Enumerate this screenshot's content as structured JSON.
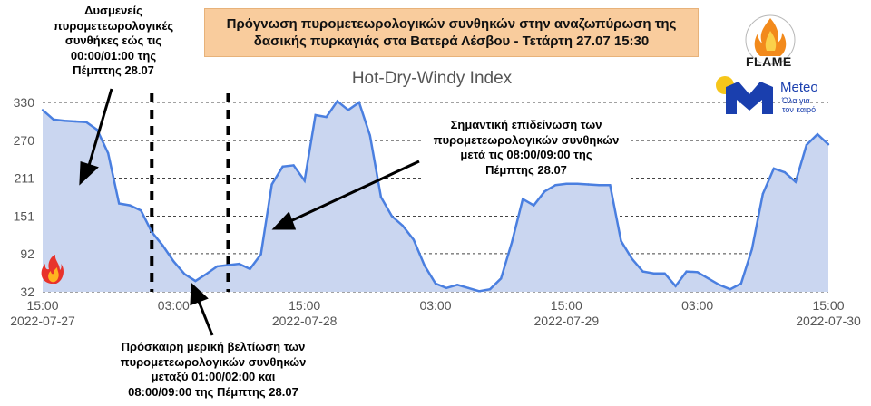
{
  "title_lines": [
    "Πρόγνωση πυρομετεωρολογικών συνθηκών στην αναζωπύρωση της",
    "δασικής πυρκαγιάς στα Βατερά Λέσβου - Τετάρτη 27.07 15:30"
  ],
  "logos": {
    "flame": "FLAME",
    "meteo": "Meteo",
    "meteo_tagline": [
      "Όλα για",
      "τον καιρό"
    ]
  },
  "annotations": {
    "left_top": [
      "Δυσμενείς",
      "πυρομετεωρολογικές",
      "συνθήκες εώς τις",
      "00:00/01:00 της",
      "Πέμπτης 28.07"
    ],
    "right": [
      "Σημαντική επιδείνωση των",
      "πυρομετεωρολογικών συνθηκών",
      "μετά τις 08:00/09:00 της",
      "Πέμπτης 28.07"
    ],
    "bottom": [
      "Πρόσκαιρη μερική βελτίωση των",
      "πυρομετεωρολογικών συνθηκών",
      "μεταξύ 01:00/02:00 και",
      "08:00/09:00 της Πέμπτης 28.07"
    ]
  },
  "colors": {
    "line": "#4a7fe0",
    "fill": "#cad6f0",
    "grid": "#444444",
    "title_box": "#f9cc9d"
  },
  "chart_data": {
    "type": "area",
    "title": "Hot-Dry-Windy Index",
    "xlabel": "",
    "ylabel": "",
    "y_ticks": [
      32,
      92,
      151,
      211,
      270,
      330
    ],
    "ylim": [
      32,
      330
    ],
    "x_ticks": [
      {
        "time": "2022-07-27 15:00",
        "top": "15:00",
        "bottom": "2022-07-27"
      },
      {
        "time": "2022-07-28 03:00",
        "top": "03:00",
        "bottom": ""
      },
      {
        "time": "2022-07-28 15:00",
        "top": "15:00",
        "bottom": "2022-07-28"
      },
      {
        "time": "2022-07-29 03:00",
        "top": "03:00",
        "bottom": ""
      },
      {
        "time": "2022-07-29 15:00",
        "top": "15:00",
        "bottom": "2022-07-29"
      },
      {
        "time": "2022-07-30 03:00",
        "top": "03:00",
        "bottom": ""
      },
      {
        "time": "2022-07-30 15:00",
        "top": "15:00",
        "bottom": "2022-07-30"
      }
    ],
    "xlim": [
      "2022-07-27 15:00",
      "2022-07-30 15:00"
    ],
    "markers": [
      "2022-07-28 01:00",
      "2022-07-28 08:00"
    ],
    "grid": "horizontal dashed",
    "series": [
      {
        "points": [
          [
            "2022-07-27 15:00",
            318
          ],
          [
            "2022-07-27 16:00",
            303
          ],
          [
            "2022-07-27 17:00",
            301
          ],
          [
            "2022-07-27 18:00",
            300
          ],
          [
            "2022-07-27 19:00",
            299
          ],
          [
            "2022-07-27 20:00",
            287
          ],
          [
            "2022-07-27 21:00",
            250
          ],
          [
            "2022-07-27 22:00",
            171
          ],
          [
            "2022-07-27 23:00",
            168
          ],
          [
            "2022-07-28 00:00",
            160
          ],
          [
            "2022-07-28 01:00",
            126
          ],
          [
            "2022-07-28 02:00",
            105
          ],
          [
            "2022-07-28 03:00",
            80
          ],
          [
            "2022-07-28 04:00",
            60
          ],
          [
            "2022-07-28 05:00",
            49
          ],
          [
            "2022-07-28 06:00",
            60
          ],
          [
            "2022-07-28 07:00",
            72
          ],
          [
            "2022-07-28 08:00",
            74
          ],
          [
            "2022-07-28 09:00",
            76
          ],
          [
            "2022-07-28 10:00",
            68
          ],
          [
            "2022-07-28 11:00",
            91
          ],
          [
            "2022-07-28 12:00",
            201
          ],
          [
            "2022-07-28 13:00",
            229
          ],
          [
            "2022-07-28 14:00",
            231
          ],
          [
            "2022-07-28 15:00",
            207
          ],
          [
            "2022-07-28 16:00",
            310
          ],
          [
            "2022-07-28 17:00",
            307
          ],
          [
            "2022-07-28 18:00",
            332
          ],
          [
            "2022-07-28 19:00",
            318
          ],
          [
            "2022-07-28 20:00",
            330
          ],
          [
            "2022-07-28 21:00",
            278
          ],
          [
            "2022-07-28 22:00",
            181
          ],
          [
            "2022-07-28 23:00",
            151
          ],
          [
            "2022-07-29 00:00",
            136
          ],
          [
            "2022-07-29 01:00",
            114
          ],
          [
            "2022-07-29 02:00",
            73
          ],
          [
            "2022-07-29 03:00",
            45
          ],
          [
            "2022-07-29 04:00",
            38
          ],
          [
            "2022-07-29 05:00",
            43
          ],
          [
            "2022-07-29 06:00",
            38
          ],
          [
            "2022-07-29 07:00",
            33
          ],
          [
            "2022-07-29 08:00",
            36
          ],
          [
            "2022-07-29 09:00",
            53
          ],
          [
            "2022-07-29 10:00",
            110
          ],
          [
            "2022-07-29 11:00",
            178
          ],
          [
            "2022-07-29 12:00",
            168
          ],
          [
            "2022-07-29 13:00",
            190
          ],
          [
            "2022-07-29 14:00",
            200
          ],
          [
            "2022-07-29 15:00",
            202
          ],
          [
            "2022-07-29 16:00",
            202
          ],
          [
            "2022-07-29 17:00",
            201
          ],
          [
            "2022-07-29 18:00",
            200
          ],
          [
            "2022-07-29 19:00",
            200
          ],
          [
            "2022-07-29 20:00",
            112
          ],
          [
            "2022-07-29 21:00",
            84
          ],
          [
            "2022-07-29 22:00",
            64
          ],
          [
            "2022-07-29 23:00",
            61
          ],
          [
            "2022-07-30 00:00",
            61
          ],
          [
            "2022-07-30 01:00",
            41
          ],
          [
            "2022-07-30 02:00",
            64
          ],
          [
            "2022-07-30 03:00",
            63
          ],
          [
            "2022-07-30 04:00",
            53
          ],
          [
            "2022-07-30 05:00",
            43
          ],
          [
            "2022-07-30 06:00",
            36
          ],
          [
            "2022-07-30 07:00",
            45
          ],
          [
            "2022-07-30 08:00",
            99
          ],
          [
            "2022-07-30 09:00",
            186
          ],
          [
            "2022-07-30 10:00",
            226
          ],
          [
            "2022-07-30 11:00",
            220
          ],
          [
            "2022-07-30 12:00",
            205
          ],
          [
            "2022-07-30 13:00",
            263
          ],
          [
            "2022-07-30 14:00",
            280
          ],
          [
            "2022-07-30 15:00",
            264
          ]
        ]
      }
    ]
  }
}
